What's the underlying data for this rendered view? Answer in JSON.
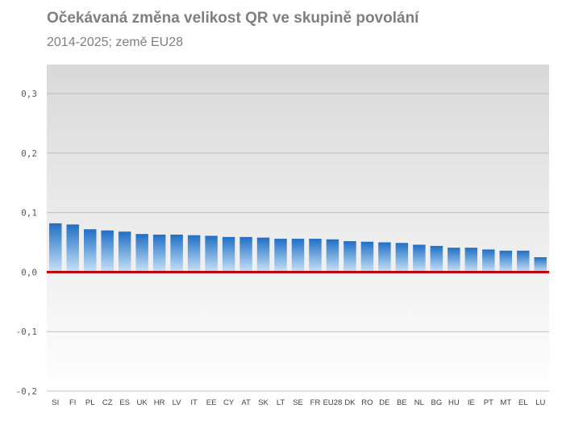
{
  "header": {
    "title": "Očekávaná změna velikost QR ve skupině povolání",
    "subtitle": "2014-2025; země EU28"
  },
  "chart_data": {
    "type": "bar",
    "categories": [
      "SI",
      "FI",
      "PL",
      "CZ",
      "ES",
      "UK",
      "HR",
      "LV",
      "IT",
      "EE",
      "CY",
      "AT",
      "SK",
      "LT",
      "SE",
      "FR",
      "EU28",
      "DK",
      "RO",
      "DE",
      "BE",
      "NL",
      "BG",
      "HU",
      "IE",
      "PT",
      "MT",
      "EL",
      "LU"
    ],
    "values": [
      0.082,
      0.08,
      0.072,
      0.07,
      0.068,
      0.064,
      0.063,
      0.063,
      0.062,
      0.061,
      0.059,
      0.059,
      0.058,
      0.056,
      0.056,
      0.056,
      0.055,
      0.052,
      0.051,
      0.05,
      0.049,
      0.046,
      0.044,
      0.041,
      0.041,
      0.038,
      0.036,
      0.036,
      0.025
    ],
    "ylim": [
      -0.2,
      0.3
    ],
    "yticks": [
      "0,3",
      "0,2",
      "0,1",
      "0,0",
      "-0,1",
      "-0,2"
    ],
    "ytick_values": [
      0.3,
      0.2,
      0.1,
      0.0,
      -0.1,
      -0.2
    ],
    "grid": true,
    "legend": "none",
    "colors": {
      "bar_top": "#1f6fc5",
      "bar_bottom": "#c9e3f7",
      "zero_line": "#c00000",
      "grid": "#bfbfbf",
      "plot_top": "#d9d9d9",
      "plot_bottom": "#ffffff"
    }
  }
}
